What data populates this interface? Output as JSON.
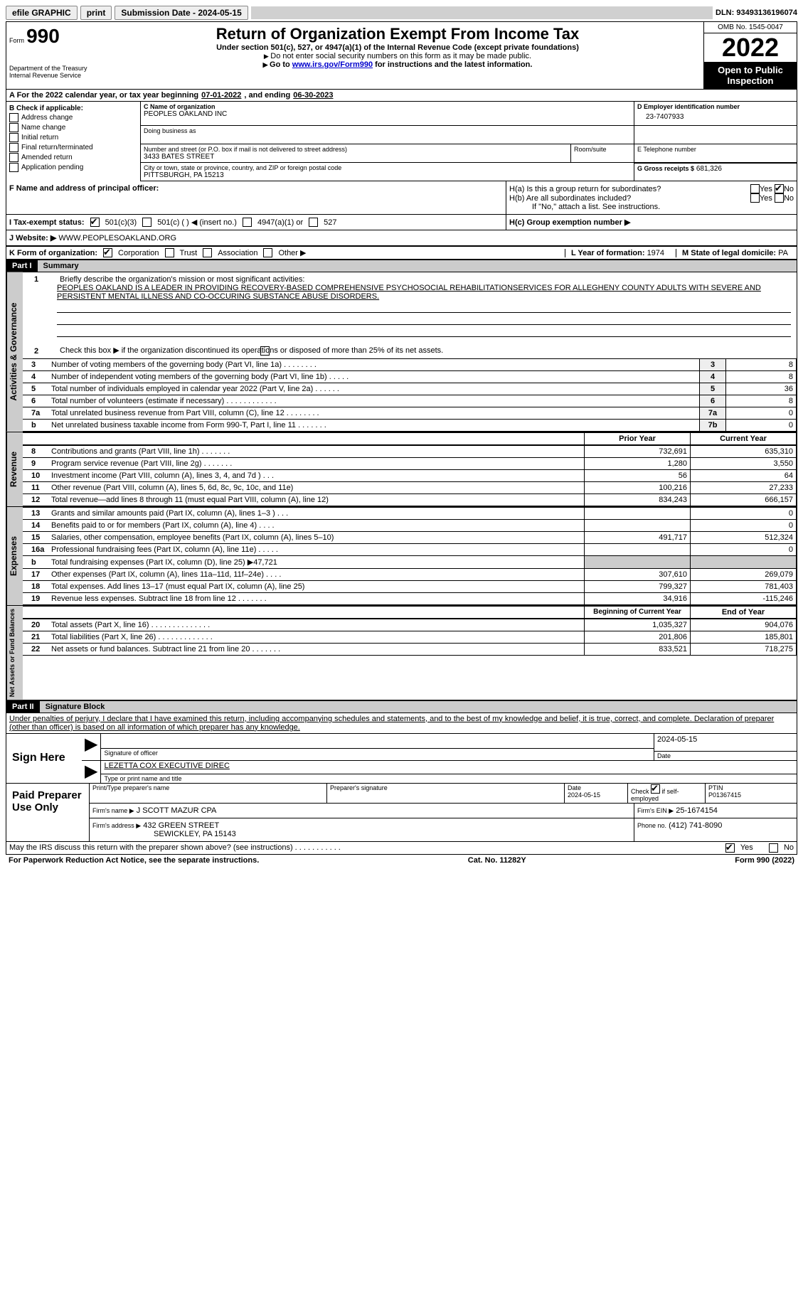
{
  "topbar": {
    "efile": "efile GRAPHIC",
    "print": "print",
    "submission": "Submission Date - 2024-05-15",
    "dln": "DLN: 93493136196074"
  },
  "header": {
    "form_label": "Form",
    "form_number": "990",
    "dept": "Department of the Treasury\nInternal Revenue Service",
    "title": "Return of Organization Exempt From Income Tax",
    "subtitle": "Under section 501(c), 527, or 4947(a)(1) of the Internal Revenue Code (except private foundations)",
    "note1": "Do not enter social security numbers on this form as it may be made public.",
    "note2_pre": "Go to ",
    "note2_link": "www.irs.gov/Form990",
    "note2_post": " for instructions and the latest information.",
    "omb": "OMB No. 1545-0047",
    "year": "2022",
    "open": "Open to Public Inspection"
  },
  "period": {
    "label_a": "A For the 2022 calendar year, or tax year beginning ",
    "begin": "07-01-2022",
    "mid": " , and ending ",
    "end": "06-30-2023"
  },
  "boxB": {
    "header": "B Check if applicable:",
    "items": [
      "Address change",
      "Name change",
      "Initial return",
      "Final return/terminated",
      "Amended return",
      "Application pending"
    ]
  },
  "boxC": {
    "name_label": "C Name of organization",
    "name": "PEOPLES OAKLAND INC",
    "dba_label": "Doing business as",
    "addr_label": "Number and street (or P.O. box if mail is not delivered to street address)",
    "addr": "3433 BATES STREET",
    "room_label": "Room/suite",
    "city_label": "City or town, state or province, country, and ZIP or foreign postal code",
    "city": "PITTSBURGH, PA  15213"
  },
  "boxD": {
    "label": "D Employer identification number",
    "value": "23-7407933"
  },
  "boxE": {
    "label": "E Telephone number",
    "value": ""
  },
  "boxG": {
    "label": "G Gross receipts $",
    "value": "681,326"
  },
  "boxF": {
    "label": "F Name and address of principal officer:"
  },
  "boxH": {
    "a": "H(a)  Is this a group return for subordinates?",
    "b": "H(b)  Are all subordinates included?",
    "b_note": "If \"No,\" attach a list. See instructions.",
    "c": "H(c)  Group exemption number ▶",
    "yes": "Yes",
    "no": "No"
  },
  "boxI": {
    "label": "I   Tax-exempt status:",
    "opts": [
      "501(c)(3)",
      "501(c) (  ) ◀ (insert no.)",
      "4947(a)(1) or",
      "527"
    ]
  },
  "boxJ": {
    "label": "J   Website: ▶",
    "value": "WWW.PEOPLESOAKLAND.ORG"
  },
  "boxK": {
    "label": "K Form of organization:",
    "opts": [
      "Corporation",
      "Trust",
      "Association",
      "Other ▶"
    ]
  },
  "boxL": {
    "label": "L Year of formation:",
    "value": "1974"
  },
  "boxM": {
    "label": "M State of legal domicile:",
    "value": "PA"
  },
  "part1": {
    "header": "Part I",
    "title": "Summary"
  },
  "summary": {
    "q1": "Briefly describe the organization's mission or most significant activities:",
    "mission": "PEOPLES OAKLAND IS A LEADER IN PROVIDING RECOVERY-BASED COMPREHENSIVE PSYCHOSOCIAL REHABILITATIONSERVICES FOR ALLEGHENY COUNTY ADULTS WITH SEVERE AND PERSISTENT MENTAL ILLNESS AND CO-OCCURING SUBSTANCE ABUSE DISORDERS.",
    "q2": "Check this box ▶        if the organization discontinued its operations or disposed of more than 25% of its net assets.",
    "lines_gov": [
      {
        "n": "3",
        "t": "Number of voting members of the governing body (Part VI, line 1a)   .   .   .   .   .   .   .   .",
        "b": "3",
        "v": "8"
      },
      {
        "n": "4",
        "t": "Number of independent voting members of the governing body (Part VI, line 1b)   .   .   .   .   .",
        "b": "4",
        "v": "8"
      },
      {
        "n": "5",
        "t": "Total number of individuals employed in calendar year 2022 (Part V, line 2a)   .   .   .   .   .   .",
        "b": "5",
        "v": "36"
      },
      {
        "n": "6",
        "t": "Total number of volunteers (estimate if necessary)   .   .   .   .   .   .   .   .   .   .   .   .",
        "b": "6",
        "v": "8"
      },
      {
        "n": "7a",
        "t": "Total unrelated business revenue from Part VIII, column (C), line 12   .   .   .   .   .   .   .   .",
        "b": "7a",
        "v": "0"
      },
      {
        "n": "b",
        "t": "Net unrelated business taxable income from Form 990-T, Part I, line 11   .   .   .   .   .   .   .",
        "b": "7b",
        "v": "0"
      }
    ],
    "col_prior": "Prior Year",
    "col_current": "Current Year",
    "revenue": [
      {
        "n": "8",
        "t": "Contributions and grants (Part VIII, line 1h)   .   .   .   .   .   .   .",
        "p": "732,691",
        "c": "635,310"
      },
      {
        "n": "9",
        "t": "Program service revenue (Part VIII, line 2g)   .   .   .   .   .   .   .",
        "p": "1,280",
        "c": "3,550"
      },
      {
        "n": "10",
        "t": "Investment income (Part VIII, column (A), lines 3, 4, and 7d )   .   .   .",
        "p": "56",
        "c": "64"
      },
      {
        "n": "11",
        "t": "Other revenue (Part VIII, column (A), lines 5, 6d, 8c, 9c, 10c, and 11e)",
        "p": "100,216",
        "c": "27,233"
      },
      {
        "n": "12",
        "t": "Total revenue—add lines 8 through 11 (must equal Part VIII, column (A), line 12)",
        "p": "834,243",
        "c": "666,157"
      }
    ],
    "expenses": [
      {
        "n": "13",
        "t": "Grants and similar amounts paid (Part IX, column (A), lines 1–3 )   .   .   .",
        "p": "",
        "c": "0"
      },
      {
        "n": "14",
        "t": "Benefits paid to or for members (Part IX, column (A), line 4)   .   .   .   .",
        "p": "",
        "c": "0"
      },
      {
        "n": "15",
        "t": "Salaries, other compensation, employee benefits (Part IX, column (A), lines 5–10)",
        "p": "491,717",
        "c": "512,324"
      },
      {
        "n": "16a",
        "t": "Professional fundraising fees (Part IX, column (A), line 11e)   .   .   .   .   .",
        "p": "",
        "c": "0"
      },
      {
        "n": "b",
        "t": "Total fundraising expenses (Part IX, column (D), line 25) ▶47,721",
        "p": "shade",
        "c": "shade"
      },
      {
        "n": "17",
        "t": "Other expenses (Part IX, column (A), lines 11a–11d, 11f–24e)   .   .   .   .",
        "p": "307,610",
        "c": "269,079"
      },
      {
        "n": "18",
        "t": "Total expenses. Add lines 13–17 (must equal Part IX, column (A), line 25)",
        "p": "799,327",
        "c": "781,403"
      },
      {
        "n": "19",
        "t": "Revenue less expenses. Subtract line 18 from line 12   .   .   .   .   .   .   .",
        "p": "34,916",
        "c": "-115,246"
      }
    ],
    "col_begin": "Beginning of Current Year",
    "col_end": "End of Year",
    "net": [
      {
        "n": "20",
        "t": "Total assets (Part X, line 16)   .   .   .   .   .   .   .   .   .   .   .   .   .   .",
        "p": "1,035,327",
        "c": "904,076"
      },
      {
        "n": "21",
        "t": "Total liabilities (Part X, line 26)   .   .   .   .   .   .   .   .   .   .   .   .   .",
        "p": "201,806",
        "c": "185,801"
      },
      {
        "n": "22",
        "t": "Net assets or fund balances. Subtract line 21 from line 20   .   .   .   .   .   .   .",
        "p": "833,521",
        "c": "718,275"
      }
    ]
  },
  "tabs": {
    "gov": "Activities & Governance",
    "rev": "Revenue",
    "exp": "Expenses",
    "net": "Net Assets or Fund Balances"
  },
  "part2": {
    "header": "Part II",
    "title": "Signature Block",
    "perjury": "Under penalties of perjury, I declare that I have examined this return, including accompanying schedules and statements, and to the best of my knowledge and belief, it is true, correct, and complete. Declaration of preparer (other than officer) is based on all information of which preparer has any knowledge."
  },
  "sign": {
    "here": "Sign Here",
    "sig_officer": "Signature of officer",
    "date_val": "2024-05-15",
    "date": "Date",
    "name": "LEZETTA COX  EXECUTIVE DIREC",
    "name_label": "Type or print name and title"
  },
  "paid": {
    "label": "Paid Preparer Use Only",
    "h1": "Print/Type preparer's name",
    "h2": "Preparer's signature",
    "h3_label": "Date",
    "h3": "2024-05-15",
    "h4_pre": "Check",
    "h4_post": "if self-employed",
    "h5_label": "PTIN",
    "h5": "P01367415",
    "firm_name_label": "Firm's name    ▶",
    "firm_name": "J SCOTT MAZUR CPA",
    "firm_ein_label": "Firm's EIN ▶",
    "firm_ein": "25-1674154",
    "firm_addr_label": "Firm's address ▶",
    "firm_addr1": "432 GREEN STREET",
    "firm_addr2": "SEWICKLEY, PA  15143",
    "phone_label": "Phone no.",
    "phone": "(412) 741-8090"
  },
  "footer": {
    "discuss": "May the IRS discuss this return with the preparer shown above? (see instructions)   .   .   .   .   .   .   .   .   .   .   .",
    "yes": "Yes",
    "no": "No",
    "paperwork": "For Paperwork Reduction Act Notice, see the separate instructions.",
    "cat": "Cat. No. 11282Y",
    "form": "Form 990 (2022)"
  }
}
